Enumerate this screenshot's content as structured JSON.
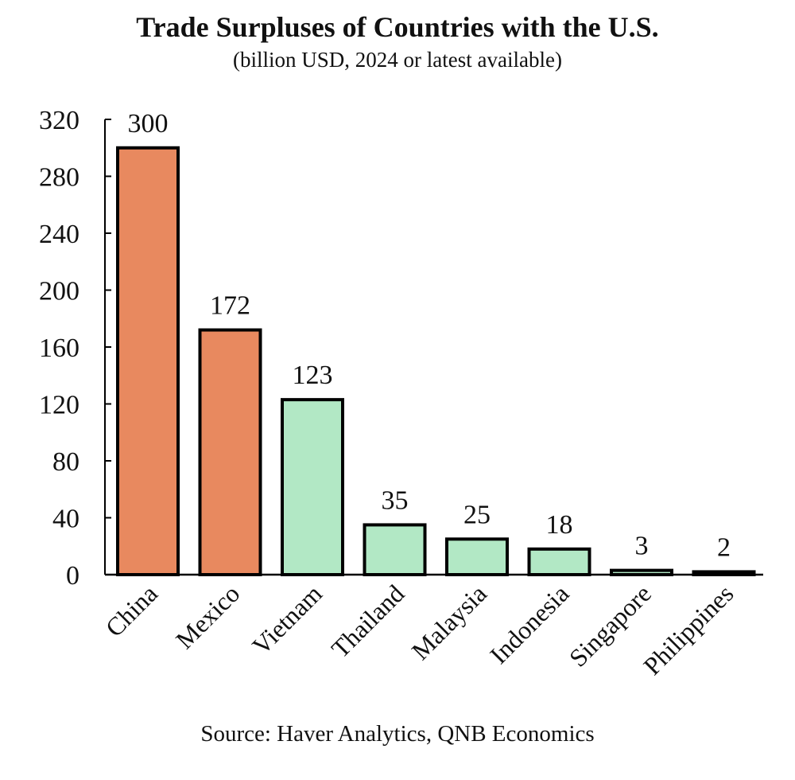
{
  "chart_data": {
    "type": "bar",
    "title": "Trade Surpluses of Countries with the U.S.",
    "subtitle": "(billion USD, 2024 or latest available)",
    "source": "Source: Haver Analytics, QNB Economics",
    "xlabel": "",
    "ylabel": "",
    "ylim": [
      0,
      320
    ],
    "yticks": [
      0,
      40,
      80,
      120,
      160,
      200,
      240,
      280,
      320
    ],
    "grid": false,
    "legend": "none",
    "categories": [
      "China",
      "Mexico",
      "Vietnam",
      "Thailand",
      "Malaysia",
      "Indonesia",
      "Singapore",
      "Philippines"
    ],
    "values": [
      300,
      172,
      123,
      35,
      25,
      18,
      3,
      2
    ],
    "data_labels": [
      "300",
      "172",
      "123",
      "35",
      "25",
      "18",
      "3",
      "2"
    ],
    "bar_colors": [
      "#E8895F",
      "#E8895F",
      "#B2E8C5",
      "#B2E8C5",
      "#B2E8C5",
      "#B2E8C5",
      "#B2E8C5",
      "#B2E8C5"
    ],
    "bar_outline_color": "#000000"
  }
}
